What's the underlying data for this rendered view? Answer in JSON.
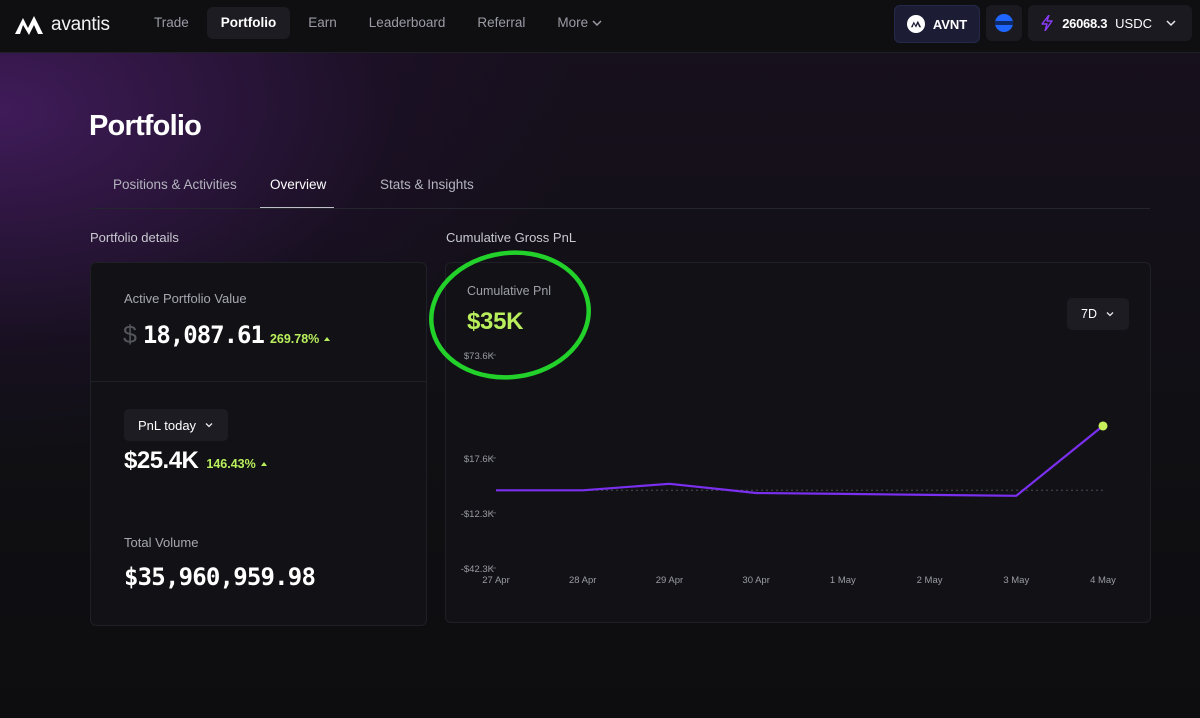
{
  "nav": {
    "logo_text": "avantis",
    "items": [
      {
        "label": "Trade",
        "active": false
      },
      {
        "label": "Portfolio",
        "active": true
      },
      {
        "label": "Earn",
        "active": false
      },
      {
        "label": "Leaderboard",
        "active": false
      },
      {
        "label": "Referral",
        "active": false
      },
      {
        "label": "More",
        "active": false,
        "has_chevron": true
      }
    ],
    "token_label": "AVNT",
    "balance_value": "26068.3",
    "balance_unit": "USDC"
  },
  "page": {
    "title": "Portfolio",
    "tabs": [
      {
        "label": "Positions & Activities",
        "active": false
      },
      {
        "label": "Overview",
        "active": true
      },
      {
        "label": "Stats & Insights",
        "active": false
      }
    ]
  },
  "portfolio_details": {
    "section_label": "Portfolio details",
    "active_value_label": "Active Portfolio Value",
    "currency_symbol": "$",
    "active_value": "18,087.61",
    "active_change": "269.78%",
    "pnl_dropdown_label": "PnL today",
    "pnl_today_value": "$25.4K",
    "pnl_today_change": "146.43%",
    "total_volume_label": "Total Volume",
    "total_volume_value": "$35,960,959.98"
  },
  "pnl_chart": {
    "section_label": "Cumulative Gross PnL",
    "card_label": "Cumulative Pnl",
    "card_value": "$35K",
    "range_label": "7D",
    "colors": {
      "line": "#7b2ff0",
      "endpoint": "#c7ef5a",
      "zero_line": "#4a4a55",
      "axis_text": "#9a9aa4",
      "annotation": "#22d12a"
    }
  },
  "chart_data": {
    "type": "line",
    "title": "Cumulative Gross PnL",
    "xlabel": "",
    "ylabel": "",
    "x": [
      "27 Apr",
      "28 Apr",
      "29 Apr",
      "30 Apr",
      "1 May",
      "2 May",
      "3 May",
      "4 May"
    ],
    "y_ticks": [
      73.6,
      17.6,
      -12.3,
      -42.3
    ],
    "y_tick_labels": [
      "$73.6K",
      "$17.6K",
      "-$12.3K",
      "-$42.3K"
    ],
    "ylim": [
      -42.3,
      73.6
    ],
    "y_unit": "$K",
    "series": [
      {
        "values": [
          0,
          0,
          3.5,
          -1.5,
          -2,
          -2.5,
          -3,
          35
        ]
      }
    ],
    "zero_line": true,
    "grid": false,
    "legend": "none"
  }
}
